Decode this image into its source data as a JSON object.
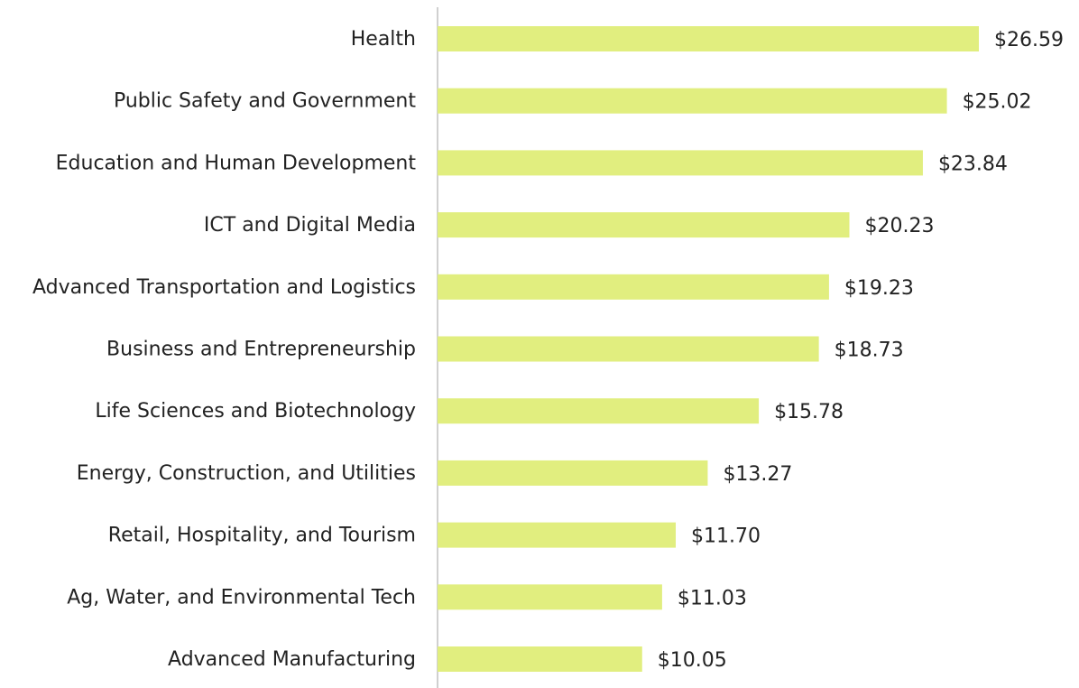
{
  "chart_data": {
    "type": "hbar",
    "categories": [
      "Health",
      "Public Safety and Government",
      "Education and Human Development",
      "ICT and Digital Media",
      "Advanced Transportation and Logistics",
      "Business and Entrepreneurship",
      "Life Sciences and Biotechnology",
      "Energy, Construction, and Utilities",
      "Retail, Hospitality, and Tourism",
      "Ag, Water, and Environmental Tech",
      "Advanced Manufacturing"
    ],
    "values": [
      26.59,
      25.02,
      23.84,
      20.23,
      19.23,
      18.73,
      15.78,
      13.27,
      11.7,
      11.03,
      10.05
    ],
    "value_labels": [
      "$26.59",
      "$25.02",
      "$23.84",
      "$20.23",
      "$19.23",
      "$18.73",
      "$15.78",
      "$13.27",
      "$11.70",
      "$11.03",
      "$10.05"
    ],
    "color": "#e1ee7f",
    "xlim": [
      0,
      30
    ]
  }
}
